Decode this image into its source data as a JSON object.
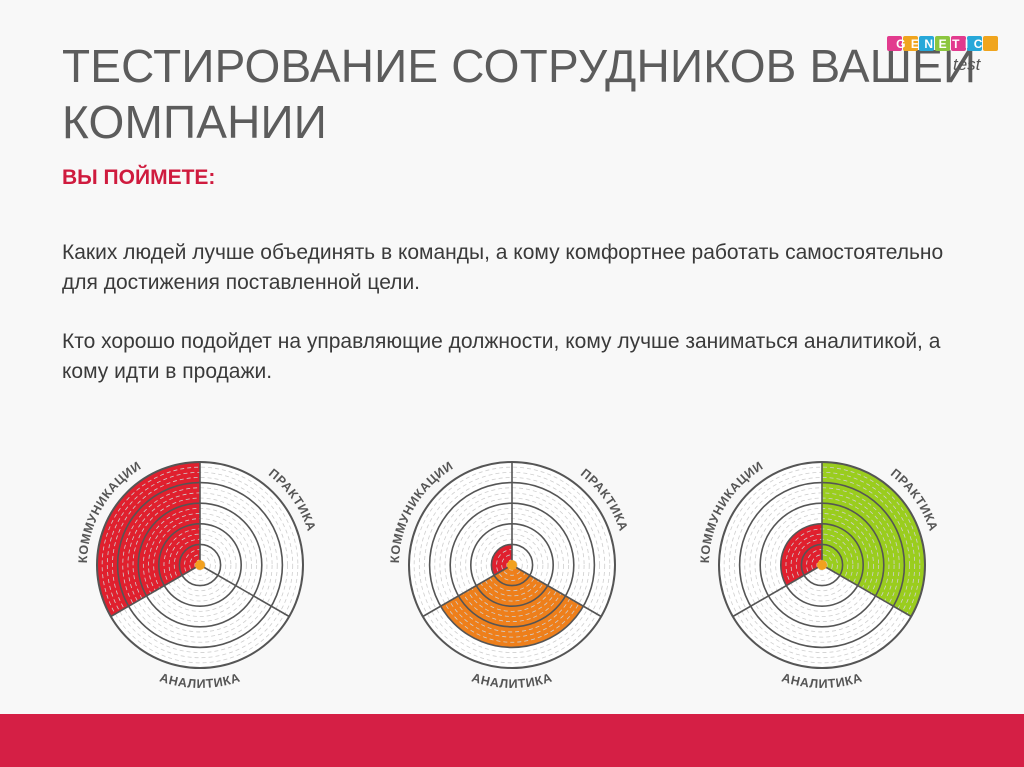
{
  "slide": {
    "title": "ТЕСТИРОВАНИЕ СОТРУДНИКОВ ВАШЕЙ КОМПАНИИ",
    "subtitle": "ВЫ ПОЙМЕТЕ:",
    "paragraphs": [
      "Каких людей лучше объединять в команды, а кому комфортнее работать самостоятельно для достижения поставленной цели.",
      "Кто хорошо подойдет на управляющие должности, кому лучше заниматься аналитикой, а кому идти в продажи."
    ]
  },
  "logo": {
    "word_top": "GENETIC",
    "word_bottom": "test"
  },
  "colors": {
    "title": "#5c5c5c",
    "accent": "#cf1b3e",
    "footer": "#d51f45",
    "red": "#e0202e",
    "orange": "#ee7f1b",
    "green": "#9acd1e",
    "center_dot": "#f2a11f"
  },
  "diagrams": [
    {
      "labels": {
        "communications": "КОММУНИКАЦИИ",
        "practice": "ПРАКТИКА",
        "analytics": "АНАЛИТИКА"
      },
      "levels": {
        "communications": 5,
        "practice": 0,
        "analytics": 0
      },
      "fills": {
        "communications": "red",
        "practice": "green",
        "analytics": "orange"
      }
    },
    {
      "labels": {
        "communications": "КОММУНИКАЦИИ",
        "practice": "ПРАКТИКА",
        "analytics": "АНАЛИТИКА"
      },
      "levels": {
        "communications": 1,
        "practice": 0,
        "analytics": 4
      },
      "fills": {
        "communications": "red",
        "practice": "green",
        "analytics": "orange"
      }
    },
    {
      "labels": {
        "communications": "КОММУНИКАЦИИ",
        "practice": "ПРАКТИКА",
        "analytics": "АНАЛИТИКА"
      },
      "levels": {
        "communications": 2,
        "practice": 5,
        "analytics": 0
      },
      "fills": {
        "communications": "red",
        "practice": "green",
        "analytics": "orange"
      }
    }
  ]
}
